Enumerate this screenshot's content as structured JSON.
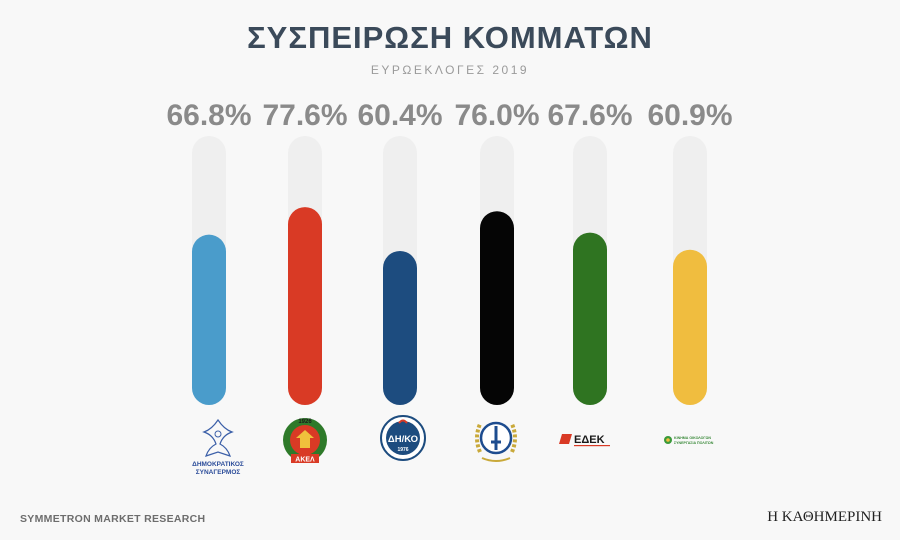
{
  "header": {
    "title": "ΣΥΣΠΕΙΡΩΣΗ ΚΟΜΜΑΤΩΝ",
    "subtitle": "ΕΥΡΩΕΚΛΟΓΕΣ 2019"
  },
  "footer": {
    "source": "SYMMETRON MARKET RESEARCH",
    "brand": "Η ΚΑΘΗΜΕΡΙΝΗ"
  },
  "logos": {
    "disy_line1": "ΔΗΜΟΚΡΑΤΙΚΟΣ",
    "disy_line2": "ΣΥΝΑΓΕΡΜΟΣ",
    "akel_year": "1926",
    "akel_name": "ΑΚΕΛ",
    "diko_name": "ΔΗ/ΚΟ",
    "diko_year": "1976",
    "edek_name": "ΕΔΕΚ",
    "symmaxia_line1": "ΚΙΝΗΜΑ ΟΙΚΟΛΟΓΩΝ",
    "symmaxia_line2": "ΣΥΝΕΡΓΑΣΙΑ ΠΟΛΙΤΩΝ"
  },
  "chart_data": {
    "type": "bar",
    "categories": [
      "ΔΗΣΥ",
      "ΑΚΕΛ",
      "ΔΗΚΟ",
      "ΕΛΑΜ",
      "ΕΔΕΚ",
      "Κίνημα Οικολόγων"
    ],
    "values": [
      66.8,
      77.6,
      60.4,
      76.0,
      67.6,
      60.9
    ],
    "value_labels": [
      "66.8%",
      "77.6%",
      "60.4%",
      "76.0%",
      "67.6%",
      "60.9%"
    ],
    "colors": [
      "#4a9ccb",
      "#d93a25",
      "#1d4c7f",
      "#050505",
      "#2f7421",
      "#f0bd3f"
    ],
    "track_color": "#efefef",
    "ylim": [
      0,
      100
    ],
    "grid": false,
    "legend": "none"
  }
}
